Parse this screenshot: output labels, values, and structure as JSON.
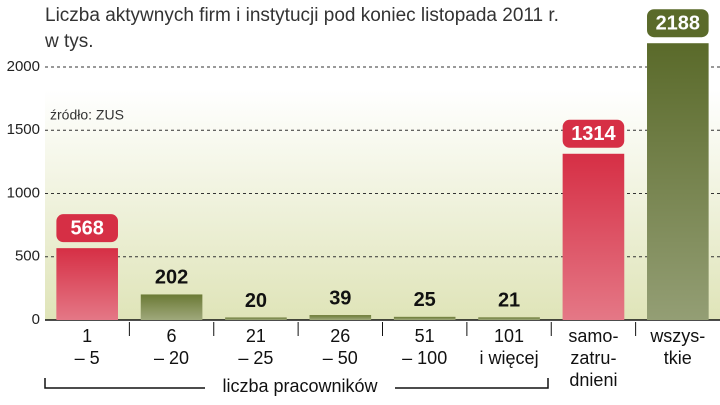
{
  "chart_data": {
    "type": "bar",
    "title": "Liczba aktywnych firm i instytucji pod koniec listopada 2011 r.",
    "subtitle": "w tys.",
    "source": "źródło: ZUS",
    "group_label": "liczba pracowników",
    "categories": [
      [
        "1",
        "– 5"
      ],
      [
        "6",
        "– 20"
      ],
      [
        "21",
        "– 25"
      ],
      [
        "26",
        "– 50"
      ],
      [
        "51",
        "– 100"
      ],
      [
        "101",
        "i więcej"
      ],
      [
        "samo-",
        "zatru-",
        "dnieni"
      ],
      [
        "wszys-",
        "tkie"
      ]
    ],
    "values": [
      568,
      202,
      20,
      39,
      25,
      21,
      1314,
      2188
    ],
    "colors": [
      "#d62f45",
      "#6b7a35",
      "#6b7a35",
      "#6b7a35",
      "#6b7a35",
      "#6b7a35",
      "#d62f45",
      "#5a6a2a"
    ],
    "badge": [
      true,
      false,
      false,
      false,
      false,
      false,
      true,
      true
    ],
    "ylim": [
      0,
      2200
    ],
    "yticks": [
      0,
      500,
      1000,
      1500,
      2000
    ],
    "grid": true
  }
}
